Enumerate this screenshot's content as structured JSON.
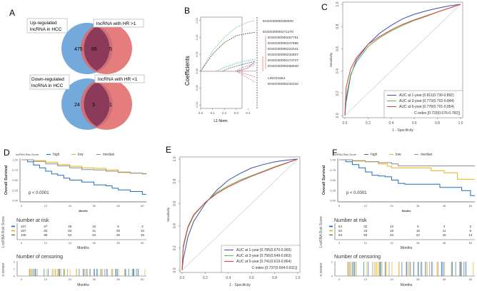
{
  "panels": {
    "A": {
      "label": "A",
      "venns": [
        {
          "left_label_1": "Up-regulated",
          "left_label_2": "lncRNA in HCC",
          "right_label": "lncRNA with HR >1",
          "left_only": "475",
          "overlap": "65",
          "right_only": "5"
        },
        {
          "left_label_1": "Down-regulated",
          "left_label_2": "lncRNA in HCC",
          "right_label": "lncRNA with HR <1",
          "left_only": "24",
          "overlap": "3",
          "right_only": "1"
        }
      ],
      "colors": {
        "left": "#5b9bd5",
        "right": "#e06666",
        "overlap": "#8b3a5a"
      }
    },
    "B": {
      "label": "B",
      "ylabel": "Coefficients",
      "xlabel": "L1 Norm",
      "xticks": [
        "0.0",
        "0.1",
        "0.2",
        "0.3",
        "0.4"
      ],
      "yticks": [
        "0.15",
        "0.10",
        "0.05",
        "0.00",
        "-0.05",
        "-0.10"
      ],
      "genes": [
        "ENSG00000260920",
        "ENSG00000271270",
        "ENSG00000267751",
        "ENSG00000247595",
        "ENSG00000222041",
        "ENSG00000232807",
        "ENSG00000173727",
        "ENSG00000256940",
        "LINC01554",
        "ENSG00000232310"
      ]
    },
    "C": {
      "label": "C",
      "ylabel": "Sensitivity",
      "xlabel": "1 - Specificity",
      "ticks": [
        "0.0",
        "0.2",
        "0.4",
        "0.6",
        "0.8",
        "1.0"
      ],
      "legend": [
        {
          "text": "AUC at 1-year [0.811(0.730-0.892)",
          "color": "#3a4fa8"
        },
        {
          "text": "AUC at 3-year [0.773(0.702-0.844)",
          "color": "#5cb85c"
        },
        {
          "text": "AUC at 5-year [0.778(0.701-0.854)",
          "color": "#e04040"
        }
      ],
      "cindex": "C-index [0.729(0.676-0.782)]"
    },
    "D": {
      "label": "D",
      "legend_title": "lncRNA Risk Score",
      "legend": [
        {
          "text": "high",
          "color": "#1f6fba"
        },
        {
          "text": "low",
          "color": "#e6b41c"
        },
        {
          "text": "median",
          "color": "#8c8c8c"
        }
      ],
      "ylabel": "Overall Survival",
      "yticks": [
        "1.00",
        "0.75",
        "0.50",
        "0.25",
        "0.00"
      ],
      "xticks": [
        "0",
        "12",
        "24",
        "36",
        "48",
        "60"
      ],
      "xlabel": "Months",
      "pvalue": "p < 0.0001",
      "risk_title": "Number at risk",
      "risk_ylabel": "LncRNA Risk Score",
      "risk_rows": [
        [
          "107",
          "67",
          "29",
          "16",
          "8",
          "3"
        ],
        [
          "107",
          "82",
          "53",
          "41",
          "30",
          "19"
        ],
        [
          "106",
          "95",
          "54",
          "34",
          "25",
          "18"
        ]
      ],
      "censor_title": "Number of censoring",
      "censor_ylabel": "n.censor",
      "censor_yticks": [
        "2",
        "1",
        "0"
      ]
    },
    "E": {
      "label": "E",
      "ylabel": "Sensitivity",
      "xlabel": "1 - Specificity",
      "ticks": [
        "0.0",
        "0.2",
        "0.4",
        "0.6",
        "0.8",
        "1.0"
      ],
      "legend": [
        {
          "text": "AUC at 1-year [0.785(0.670-0.900)",
          "color": "#3a4fa8"
        },
        {
          "text": "AUC at 3-year [0.756(0.649-0.863)",
          "color": "#5cb85c"
        },
        {
          "text": "AUC at 5-year [0.741(0.619-0.864)",
          "color": "#e04040"
        }
      ],
      "cindex": "C-index [0.737(0.664-0.811)]"
    },
    "F": {
      "label": "F",
      "legend_title": "lncRNA Risk Score",
      "legend": [
        {
          "text": "high",
          "color": "#1f6fba"
        },
        {
          "text": "low",
          "color": "#e6b41c"
        },
        {
          "text": "median",
          "color": "#8c8c8c"
        }
      ],
      "ylabel": "Overall Survival",
      "yticks": [
        "1.00",
        "0.75",
        "0.50",
        "0.25",
        "0.00"
      ],
      "xticks": [
        "0",
        "12",
        "24",
        "36",
        "48",
        "60"
      ],
      "xlabel": "Months",
      "pvalue": "p < 0.0001",
      "risk_title": "Number at risk",
      "risk_ylabel": "LncRNA Risk Score",
      "risk_rows": [
        [
          "54",
          "32",
          "13",
          "9",
          "4",
          "2"
        ],
        [
          "53",
          "43",
          "18",
          "15",
          "11",
          "5"
        ],
        [
          "53",
          "50",
          "34",
          "22",
          "16",
          "12"
        ]
      ],
      "censor_title": "Number of censoring",
      "censor_ylabel": "n.censor",
      "censor_yticks": [
        "1",
        "0"
      ]
    }
  },
  "chart_data": [
    {
      "type": "line",
      "panel": "B",
      "title": "",
      "xlabel": "L1 Norm",
      "ylabel": "Coefficients",
      "xlim": [
        0,
        0.47
      ],
      "ylim": [
        -0.11,
        0.16
      ],
      "series": [
        {
          "name": "ENSG00000260920",
          "color": "#7fcf8f",
          "x": [
            0,
            0.1,
            0.2,
            0.3,
            0.4,
            0.46
          ],
          "y": [
            0,
            0.06,
            0.1,
            0.13,
            0.145,
            0.15
          ]
        },
        {
          "name": "ENSG00000271270",
          "color": "#555555",
          "x": [
            0,
            0.1,
            0.2,
            0.3,
            0.4,
            0.46
          ],
          "y": [
            0,
            0.05,
            0.085,
            0.105,
            0.112,
            0.115
          ]
        },
        {
          "name": "ENSG00000267751",
          "color": "#8ed6e0",
          "x": [
            0,
            0.13,
            0.2,
            0.3,
            0.4,
            0.46
          ],
          "y": [
            0,
            0,
            0.012,
            0.025,
            0.033,
            0.036
          ]
        },
        {
          "name": "ENSG00000247595",
          "color": "#a0e0d0",
          "x": [
            0,
            0.14,
            0.2,
            0.3,
            0.4,
            0.46
          ],
          "y": [
            0,
            0,
            0.01,
            0.022,
            0.03,
            0.034
          ]
        },
        {
          "name": "ENSG00000222041",
          "color": "#666666",
          "x": [
            0,
            0.18,
            0.25,
            0.35,
            0.46
          ],
          "y": [
            0,
            0,
            0.01,
            0.02,
            0.029
          ]
        },
        {
          "name": "ENSG00000232807",
          "color": "#7aa0d8",
          "x": [
            0,
            0.29,
            0.35,
            0.46
          ],
          "y": [
            0,
            0,
            0.01,
            0.024
          ]
        },
        {
          "name": "ENSG00000173727",
          "color": "#d080c0",
          "x": [
            0,
            0.3,
            0.38,
            0.46
          ],
          "y": [
            0,
            0,
            0.008,
            0.02
          ]
        },
        {
          "name": "ENSG00000256940",
          "color": "#e06060",
          "x": [
            0,
            0.32,
            0.4,
            0.46
          ],
          "y": [
            0,
            0,
            0.01,
            0.03
          ]
        },
        {
          "name": "LINC01554",
          "color": "#e07080",
          "x": [
            0,
            0.3,
            0.4,
            0.46
          ],
          "y": [
            0,
            0,
            -0.01,
            -0.017
          ]
        },
        {
          "name": "ENSG00000232310",
          "color": "#d090b0",
          "x": [
            0,
            0.3,
            0.4,
            0.46
          ],
          "y": [
            0,
            0,
            -0.02,
            -0.033
          ]
        }
      ]
    },
    {
      "type": "line",
      "panel": "C",
      "xlabel": "1 - Specificity",
      "ylabel": "Sensitivity",
      "xlim": [
        0,
        1
      ],
      "ylim": [
        0,
        1
      ],
      "series": [
        {
          "name": "AUC at 1-year",
          "color": "#3a4fa8",
          "x": [
            0,
            0.01,
            0.05,
            0.1,
            0.2,
            0.3,
            0.4,
            0.5,
            0.6,
            0.7,
            0.8,
            0.9,
            1.0
          ],
          "y": [
            0,
            0.12,
            0.36,
            0.5,
            0.64,
            0.74,
            0.81,
            0.87,
            0.91,
            0.94,
            0.965,
            0.985,
            1.0
          ]
        },
        {
          "name": "AUC at 3-year",
          "color": "#5cb85c",
          "x": [
            0,
            0.01,
            0.05,
            0.1,
            0.2,
            0.3,
            0.4,
            0.5,
            0.6,
            0.7,
            0.8,
            0.9,
            1.0
          ],
          "y": [
            0,
            0.16,
            0.37,
            0.48,
            0.62,
            0.7,
            0.76,
            0.81,
            0.855,
            0.89,
            0.93,
            0.965,
            1.0
          ]
        },
        {
          "name": "AUC at 5-year",
          "color": "#e04040",
          "x": [
            0,
            0.01,
            0.05,
            0.1,
            0.2,
            0.3,
            0.4,
            0.5,
            0.6,
            0.7,
            0.8,
            0.9,
            1.0
          ],
          "y": [
            0,
            0.25,
            0.42,
            0.52,
            0.64,
            0.71,
            0.77,
            0.82,
            0.86,
            0.895,
            0.93,
            0.965,
            1.0
          ]
        }
      ]
    },
    {
      "type": "line",
      "panel": "D",
      "xlabel": "Months",
      "ylabel": "Overall Survival",
      "xlim": [
        0,
        62
      ],
      "ylim": [
        0,
        1
      ],
      "series": [
        {
          "name": "high",
          "color": "#1f6fba",
          "x": [
            0,
            3,
            6,
            9,
            12,
            15,
            18,
            21,
            24,
            30,
            36,
            42,
            45,
            48,
            54,
            60,
            62
          ],
          "y": [
            1,
            0.95,
            0.87,
            0.8,
            0.72,
            0.65,
            0.62,
            0.55,
            0.5,
            0.45,
            0.38,
            0.36,
            0.3,
            0.26,
            0.22,
            0.15,
            0.15
          ]
        },
        {
          "name": "low",
          "color": "#e6b41c",
          "x": [
            0,
            6,
            12,
            18,
            24,
            30,
            36,
            42,
            48,
            54,
            60,
            62
          ],
          "y": [
            1,
            0.98,
            0.94,
            0.88,
            0.84,
            0.8,
            0.79,
            0.75,
            0.7,
            0.67,
            0.65,
            0.64
          ]
        },
        {
          "name": "median",
          "color": "#8c8c8c",
          "x": [
            0,
            6,
            12,
            18,
            24,
            30,
            36,
            42,
            48,
            54,
            60,
            62
          ],
          "y": [
            1,
            0.96,
            0.9,
            0.85,
            0.8,
            0.76,
            0.75,
            0.72,
            0.69,
            0.67,
            0.66,
            0.66
          ]
        }
      ]
    },
    {
      "type": "line",
      "panel": "E",
      "xlabel": "1 - Specificity",
      "ylabel": "Sensitivity",
      "xlim": [
        0,
        1
      ],
      "ylim": [
        0,
        1
      ],
      "series": [
        {
          "name": "AUC at 1-year",
          "color": "#3a4fa8",
          "x": [
            0,
            0.01,
            0.05,
            0.1,
            0.2,
            0.3,
            0.4,
            0.5,
            0.6,
            0.7,
            0.8,
            0.9,
            1.0
          ],
          "y": [
            0,
            0.1,
            0.3,
            0.44,
            0.6,
            0.72,
            0.81,
            0.87,
            0.92,
            0.95,
            0.975,
            0.99,
            1.0
          ]
        },
        {
          "name": "AUC at 3-year",
          "color": "#5cb85c",
          "x": [
            0,
            0.01,
            0.05,
            0.1,
            0.2,
            0.3,
            0.4,
            0.5,
            0.6,
            0.7,
            0.8,
            0.9,
            1.0
          ],
          "y": [
            0,
            0.2,
            0.38,
            0.49,
            0.61,
            0.7,
            0.76,
            0.81,
            0.85,
            0.89,
            0.93,
            0.965,
            1.0
          ]
        },
        {
          "name": "AUC at 5-year",
          "color": "#e04040",
          "x": [
            0,
            0.01,
            0.05,
            0.1,
            0.2,
            0.3,
            0.4,
            0.5,
            0.6,
            0.7,
            0.8,
            0.9,
            1.0
          ],
          "y": [
            0,
            0.22,
            0.39,
            0.5,
            0.61,
            0.69,
            0.75,
            0.8,
            0.845,
            0.885,
            0.925,
            0.962,
            1.0
          ]
        }
      ]
    },
    {
      "type": "line",
      "panel": "F",
      "xlabel": "Months",
      "ylabel": "Overall Survival",
      "xlim": [
        0,
        62
      ],
      "ylim": [
        0,
        1
      ],
      "series": [
        {
          "name": "high",
          "color": "#1f6fba",
          "x": [
            0,
            3,
            6,
            9,
            12,
            15,
            18,
            21,
            24,
            27,
            30,
            36,
            42,
            46,
            48,
            54,
            56,
            60,
            62
          ],
          "y": [
            1,
            0.95,
            0.88,
            0.8,
            0.7,
            0.62,
            0.6,
            0.58,
            0.5,
            0.42,
            0.4,
            0.4,
            0.4,
            0.32,
            0.32,
            0.32,
            0.24,
            0.12,
            0.12
          ]
        },
        {
          "name": "low",
          "color": "#e6b41c",
          "x": [
            0,
            6,
            12,
            18,
            22,
            24,
            30,
            36,
            42,
            45,
            48,
            53,
            54,
            60,
            62
          ],
          "y": [
            1,
            0.98,
            0.95,
            0.9,
            0.84,
            0.8,
            0.8,
            0.8,
            0.73,
            0.73,
            0.68,
            0.68,
            0.52,
            0.52,
            0.52
          ]
        },
        {
          "name": "median",
          "color": "#8c8c8c",
          "x": [
            0,
            6,
            12,
            18,
            24,
            27,
            30,
            36,
            48,
            60,
            62
          ],
          "y": [
            1,
            0.97,
            0.95,
            0.93,
            0.9,
            0.85,
            0.85,
            0.85,
            0.85,
            0.85,
            0.85
          ]
        }
      ]
    }
  ]
}
